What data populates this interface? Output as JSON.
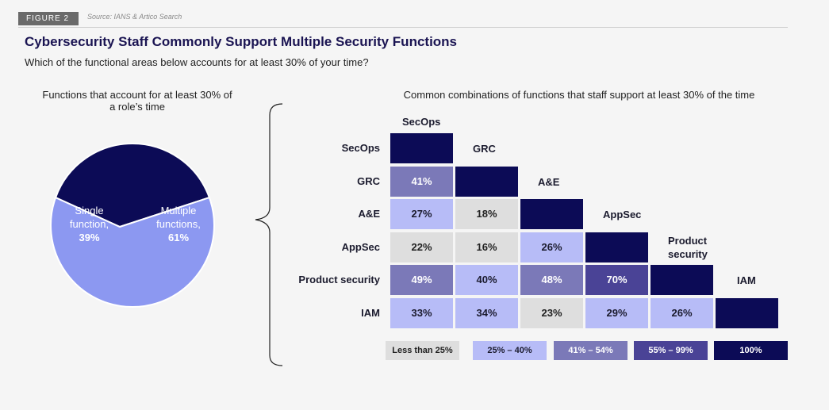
{
  "header": {
    "figure_label": "FIGURE 2",
    "source": "Source: IANS & Artico Search",
    "title": "Cybersecurity Staff Commonly Support Multiple Security Functions",
    "subtitle": "Which of the functional areas below accounts for at least 30% of your time?"
  },
  "colors": {
    "dark_navy": "#0c0b56",
    "periwinkle": "#8c98f1",
    "light_periwinkle": "#b7bcf7",
    "gray": "#dedede",
    "mid_purple": "#7b79b8",
    "deep_purple": "#4a4396"
  },
  "chart_data": [
    {
      "type": "pie",
      "title": "Functions that account for at least 30% of a role’s time",
      "slices": [
        {
          "name": "Single function,",
          "value": 39,
          "label": "39%",
          "color": "#0c0b56"
        },
        {
          "name": "Multiple functions,",
          "value": 61,
          "label": "61%",
          "color": "#8c98f1"
        }
      ]
    },
    {
      "type": "heatmap",
      "title": "Common combinations of functions that staff support at least 30% of the time",
      "categories": [
        "SecOps",
        "GRC",
        "A&E",
        "AppSec",
        "Product security",
        "IAM"
      ],
      "col_labels": [
        "SecOps",
        "GRC",
        "A&E",
        "AppSec",
        "Product security",
        "IAM"
      ],
      "values": [
        [
          100,
          null,
          null,
          null,
          null,
          null
        ],
        [
          41,
          100,
          null,
          null,
          null,
          null
        ],
        [
          27,
          18,
          100,
          null,
          null,
          null
        ],
        [
          22,
          16,
          26,
          100,
          null,
          null
        ],
        [
          49,
          40,
          48,
          70,
          100,
          null
        ],
        [
          33,
          34,
          23,
          29,
          26,
          100
        ]
      ],
      "legend": [
        {
          "label": "Less than 25%",
          "color": "#dedede",
          "text_color": "#222222"
        },
        {
          "label": "25% – 40%",
          "color": "#b7bcf7",
          "text_color": "#1b1b2e"
        },
        {
          "label": "41% – 54%",
          "color": "#7b79b8",
          "text_color": "#ffffff"
        },
        {
          "label": "55% – 99%",
          "color": "#4a4396",
          "text_color": "#ffffff"
        },
        {
          "label": "100%",
          "color": "#0c0b56",
          "text_color": "#ffffff"
        }
      ]
    }
  ]
}
